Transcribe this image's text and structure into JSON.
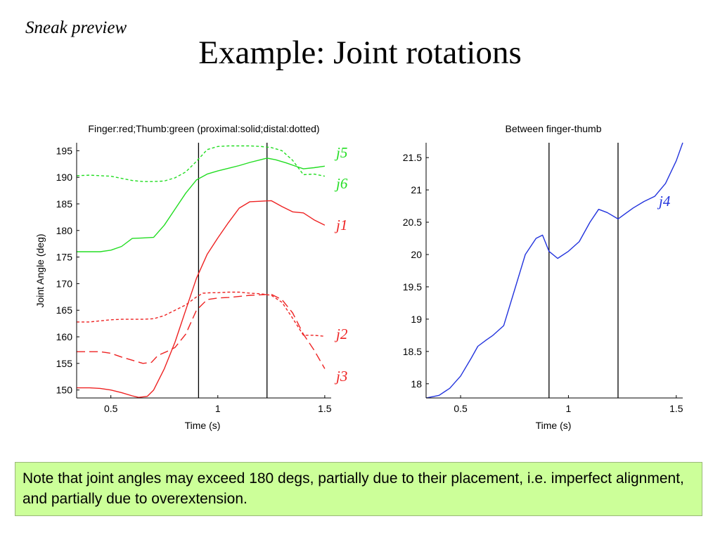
{
  "slide": {
    "sneak_label": "Sneak preview",
    "title": "Example: Joint rotations",
    "note": "Note that joint angles may exceed 180 degs, partially due to their placement, i.e. imperfect alignment, and partially due to overextension."
  },
  "chart_data": [
    {
      "type": "line",
      "title": "Finger:red;Thumb:green (proximal:solid;distal:dotted)",
      "xlabel": "Time (s)",
      "ylabel": "Joint Angle (deg)",
      "xlim": [
        0.34,
        1.53
      ],
      "ylim": [
        148.5,
        196.5
      ],
      "xticks": [
        0.5,
        1,
        1.5
      ],
      "xtick_labels": [
        "0.5",
        "1",
        "1.5"
      ],
      "yticks": [
        150,
        155,
        160,
        165,
        170,
        175,
        180,
        185,
        190,
        195
      ],
      "ytick_labels": [
        "150",
        "155",
        "160",
        "165",
        "170",
        "175",
        "180",
        "185",
        "190",
        "195"
      ],
      "grid": false,
      "vlines": [
        0.91,
        1.23
      ],
      "series": [
        {
          "name": "j5",
          "color": "#22dd22",
          "style": "solid",
          "x": [
            0.34,
            0.4,
            0.45,
            0.5,
            0.55,
            0.6,
            0.65,
            0.7,
            0.75,
            0.8,
            0.85,
            0.9,
            0.95,
            1.0,
            1.05,
            1.1,
            1.15,
            1.2,
            1.23,
            1.27,
            1.32,
            1.37,
            1.4,
            1.45,
            1.5
          ],
          "y": [
            176,
            176,
            176,
            176.3,
            177,
            178.5,
            178.6,
            178.7,
            181,
            184,
            187,
            189.5,
            190.6,
            191.2,
            191.7,
            192.2,
            192.8,
            193.3,
            193.6,
            193.3,
            192.7,
            192,
            191.6,
            191.8,
            192.1
          ]
        },
        {
          "name": "j6",
          "color": "#22dd22",
          "style": "dotted",
          "x": [
            0.34,
            0.4,
            0.45,
            0.5,
            0.55,
            0.6,
            0.65,
            0.7,
            0.75,
            0.8,
            0.85,
            0.9,
            0.95,
            1.0,
            1.05,
            1.1,
            1.15,
            1.2,
            1.25,
            1.3,
            1.35,
            1.4,
            1.45,
            1.5
          ],
          "y": [
            190.3,
            190.4,
            190.3,
            190.2,
            189.8,
            189.4,
            189.2,
            189.2,
            189.3,
            189.9,
            191,
            193,
            195.2,
            195.8,
            195.9,
            195.9,
            195.9,
            195.8,
            195.6,
            195,
            193.2,
            190.5,
            190.6,
            190.2
          ]
        },
        {
          "name": "j1",
          "color": "#ee2222",
          "style": "solid",
          "x": [
            0.34,
            0.4,
            0.45,
            0.5,
            0.55,
            0.6,
            0.63,
            0.67,
            0.7,
            0.75,
            0.8,
            0.85,
            0.9,
            0.95,
            1.0,
            1.05,
            1.1,
            1.15,
            1.2,
            1.25,
            1.3,
            1.35,
            1.4,
            1.45,
            1.5
          ],
          "y": [
            150.4,
            150.4,
            150.3,
            150,
            149.5,
            148.9,
            148.6,
            148.8,
            150,
            154,
            159,
            165,
            171,
            175.5,
            178.6,
            181.5,
            184.2,
            185.4,
            185.5,
            185.6,
            184.5,
            183.5,
            183.3,
            182,
            181
          ]
        },
        {
          "name": "j2",
          "color": "#ee2222",
          "style": "dotted",
          "x": [
            0.34,
            0.4,
            0.45,
            0.5,
            0.55,
            0.6,
            0.65,
            0.7,
            0.75,
            0.8,
            0.85,
            0.9,
            0.93,
            0.97,
            1.0,
            1.05,
            1.1,
            1.15,
            1.2,
            1.25,
            1.3,
            1.35,
            1.4,
            1.45,
            1.5
          ],
          "y": [
            162.8,
            162.8,
            163,
            163.2,
            163.3,
            163.3,
            163.3,
            163.4,
            164,
            165,
            166,
            167.5,
            168.2,
            168.3,
            168.3,
            168.4,
            168.4,
            168.2,
            168.1,
            167.8,
            166.5,
            163.5,
            160.3,
            160.3,
            160.1
          ]
        },
        {
          "name": "j3",
          "color": "#ee2222",
          "style": "dashed",
          "x": [
            0.34,
            0.4,
            0.45,
            0.5,
            0.55,
            0.6,
            0.65,
            0.69,
            0.72,
            0.76,
            0.8,
            0.85,
            0.9,
            0.95,
            1.0,
            1.05,
            1.1,
            1.15,
            1.2,
            1.25,
            1.3,
            1.35,
            1.4,
            1.45,
            1.5
          ],
          "y": [
            157.2,
            157.2,
            157.2,
            156.9,
            156.2,
            155.6,
            155,
            155.2,
            156.5,
            157.2,
            158,
            160.5,
            165,
            167,
            167.3,
            167.4,
            167.6,
            167.8,
            167.9,
            168,
            167,
            164.5,
            160.5,
            157.5,
            154
          ]
        }
      ],
      "labels": [
        {
          "text": "j5",
          "color": "#22dd22"
        },
        {
          "text": "j6",
          "color": "#22dd22"
        },
        {
          "text": "j1",
          "color": "#ee2222"
        },
        {
          "text": "j2",
          "color": "#ee2222"
        },
        {
          "text": "j3",
          "color": "#ee2222"
        }
      ]
    },
    {
      "type": "line",
      "title": "Between finger-thumb",
      "xlabel": "Time (s)",
      "ylabel": "",
      "xlim": [
        0.34,
        1.53
      ],
      "ylim": [
        17.78,
        21.73
      ],
      "xticks": [
        0.5,
        1,
        1.5
      ],
      "xtick_labels": [
        "0.5",
        "1",
        "1.5"
      ],
      "yticks": [
        18,
        18.5,
        19,
        19.5,
        20,
        20.5,
        21,
        21.5
      ],
      "ytick_labels": [
        "18",
        "18.5",
        "19",
        "19.5",
        "20",
        "20.5",
        "21",
        "21.5"
      ],
      "grid": false,
      "vlines": [
        0.91,
        1.23
      ],
      "series": [
        {
          "name": "j4",
          "color": "#2233dd",
          "style": "solid",
          "x": [
            0.34,
            0.4,
            0.45,
            0.5,
            0.55,
            0.58,
            0.62,
            0.65,
            0.7,
            0.75,
            0.8,
            0.85,
            0.88,
            0.91,
            0.95,
            1.0,
            1.05,
            1.1,
            1.14,
            1.18,
            1.23,
            1.3,
            1.35,
            1.4,
            1.45,
            1.5,
            1.53
          ],
          "y": [
            17.78,
            17.82,
            17.93,
            18.12,
            18.4,
            18.58,
            18.68,
            18.75,
            18.9,
            19.45,
            20,
            20.25,
            20.3,
            20.05,
            19.94,
            20.05,
            20.2,
            20.5,
            20.7,
            20.65,
            20.55,
            20.72,
            20.82,
            20.9,
            21.1,
            21.45,
            21.73
          ]
        }
      ],
      "labels": [
        {
          "text": "j4",
          "color": "#2233dd"
        }
      ]
    }
  ]
}
